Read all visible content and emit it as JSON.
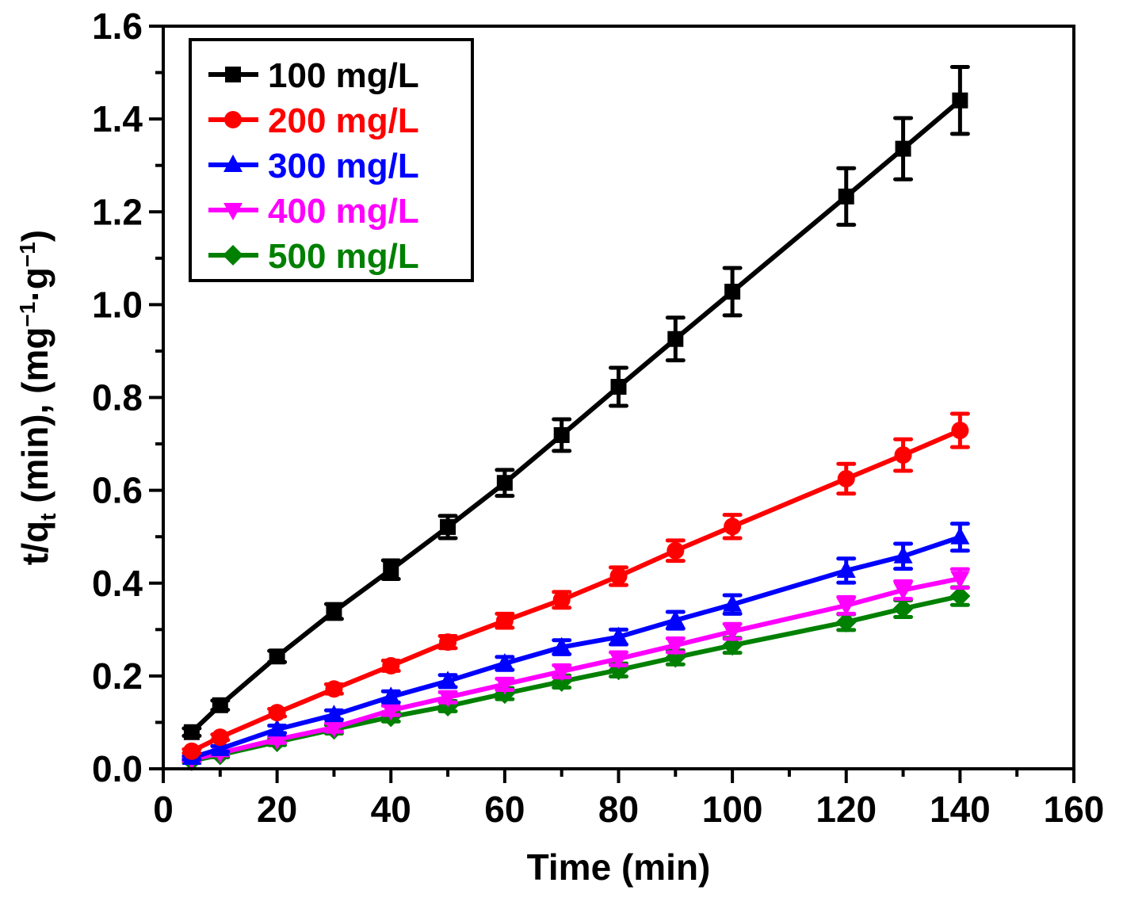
{
  "chart_data": {
    "type": "line",
    "title": "",
    "xlabel": "Time (min)",
    "ylabel": {
      "main": "t/q",
      "subscript": "t",
      "rest": " (min), (mg",
      "sup1": "−1",
      "mid": "·g",
      "sup2": "−1",
      "end": ")"
    },
    "xlim": [
      0,
      160
    ],
    "ylim": [
      0.0,
      1.6
    ],
    "xticks": [
      0,
      20,
      40,
      60,
      80,
      100,
      120,
      140,
      160
    ],
    "xtick_labels": [
      "0",
      "20",
      "40",
      "60",
      "80",
      "100",
      "120",
      "140",
      "160"
    ],
    "yticks": [
      0.0,
      0.2,
      0.4,
      0.6,
      0.8,
      1.0,
      1.2,
      1.4,
      1.6
    ],
    "ytick_labels": [
      "0.0",
      "0.2",
      "0.4",
      "0.6",
      "0.8",
      "1.0",
      "1.2",
      "1.4",
      "1.6"
    ],
    "grid": false,
    "legend_position": "top-left",
    "x": [
      5,
      10,
      20,
      30,
      40,
      50,
      60,
      70,
      80,
      90,
      100,
      120,
      130,
      140
    ],
    "series": [
      {
        "name": "100 mg/L",
        "color": "#000000",
        "marker": "square",
        "values": [
          0.079,
          0.137,
          0.242,
          0.339,
          0.429,
          0.521,
          0.616,
          0.719,
          0.823,
          0.926,
          1.028,
          1.233,
          1.336,
          1.44
        ],
        "errors": [
          0.008,
          0.01,
          0.012,
          0.016,
          0.02,
          0.024,
          0.028,
          0.034,
          0.041,
          0.046,
          0.051,
          0.061,
          0.066,
          0.072
        ]
      },
      {
        "name": "200 mg/L",
        "color": "#ff0000",
        "marker": "circle",
        "values": [
          0.038,
          0.068,
          0.121,
          0.172,
          0.222,
          0.273,
          0.319,
          0.364,
          0.415,
          0.47,
          0.522,
          0.625,
          0.676,
          0.729
        ],
        "errors": [
          0.004,
          0.006,
          0.008,
          0.01,
          0.011,
          0.013,
          0.015,
          0.017,
          0.019,
          0.022,
          0.025,
          0.032,
          0.034,
          0.036
        ]
      },
      {
        "name": "300 mg/L",
        "color": "#0000ff",
        "marker": "triangle-up",
        "values": [
          0.024,
          0.043,
          0.085,
          0.116,
          0.155,
          0.189,
          0.227,
          0.262,
          0.284,
          0.32,
          0.354,
          0.427,
          0.458,
          0.499
        ],
        "errors": [
          0.004,
          0.006,
          0.008,
          0.01,
          0.012,
          0.013,
          0.014,
          0.015,
          0.016,
          0.018,
          0.02,
          0.026,
          0.027,
          0.029
        ]
      },
      {
        "name": "400 mg/L",
        "color": "#ff00ff",
        "marker": "triangle-down",
        "values": [
          0.02,
          0.034,
          0.063,
          0.089,
          0.126,
          0.154,
          0.182,
          0.21,
          0.237,
          0.266,
          0.296,
          0.352,
          0.385,
          0.41
        ],
        "errors": [
          0.004,
          0.005,
          0.007,
          0.009,
          0.01,
          0.011,
          0.012,
          0.013,
          0.014,
          0.015,
          0.016,
          0.018,
          0.019,
          0.02
        ]
      },
      {
        "name": "500 mg/L",
        "color": "#008000",
        "marker": "diamond",
        "values": [
          0.017,
          0.03,
          0.058,
          0.085,
          0.112,
          0.135,
          0.162,
          0.188,
          0.213,
          0.24,
          0.266,
          0.316,
          0.345,
          0.372
        ],
        "errors": [
          0.004,
          0.005,
          0.007,
          0.009,
          0.01,
          0.011,
          0.012,
          0.013,
          0.014,
          0.015,
          0.016,
          0.017,
          0.018,
          0.019
        ]
      }
    ]
  }
}
